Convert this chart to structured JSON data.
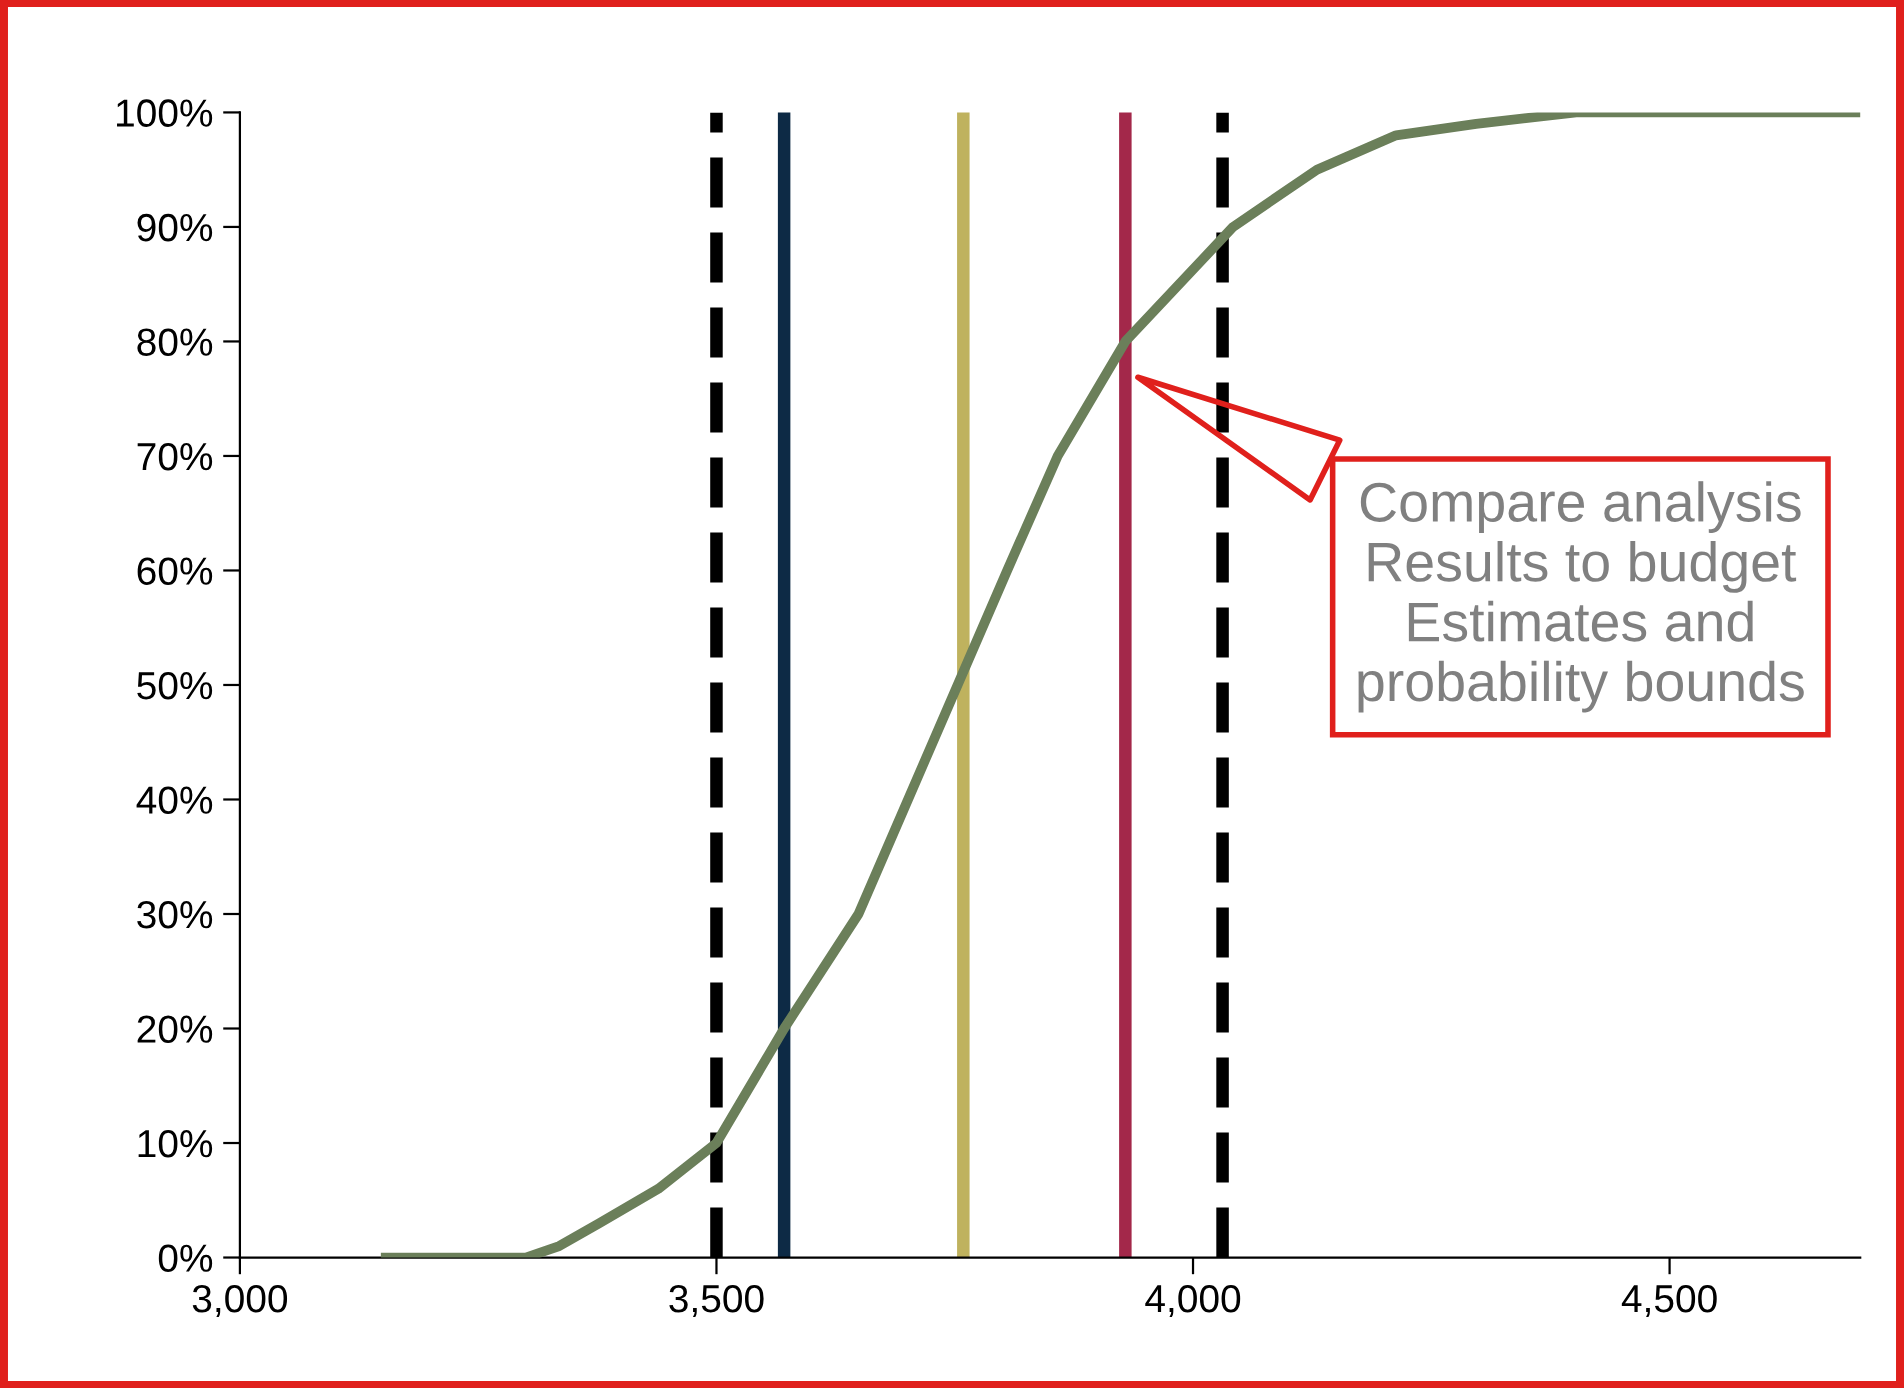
{
  "chart_data": {
    "type": "line",
    "x": [
      3153,
      3300,
      3335,
      3377,
      3439,
      3500,
      3571,
      3649,
      3701,
      3753,
      3805,
      3858,
      3929,
      4042,
      4130,
      4213,
      4297,
      4402,
      4700
    ],
    "values": [
      0,
      0,
      1,
      3,
      6,
      10,
      20,
      30,
      40,
      50,
      60,
      70,
      80,
      90,
      95,
      98,
      99,
      100,
      100
    ],
    "color": "#6b7f5a",
    "marker": "none",
    "line_style": "solid",
    "grid": false,
    "legend": false,
    "xlim": [
      3000,
      4700
    ],
    "xticks": [
      {
        "value": 3000,
        "label": "3,000"
      },
      {
        "value": 3500,
        "label": "3,500"
      },
      {
        "value": 4000,
        "label": "4,000"
      },
      {
        "value": 4500,
        "label": "4,500"
      }
    ],
    "ylim": [
      0,
      100
    ],
    "yticks": [
      {
        "value": 0,
        "label": "0%"
      },
      {
        "value": 10,
        "label": "10%"
      },
      {
        "value": 20,
        "label": "20%"
      },
      {
        "value": 30,
        "label": "30%"
      },
      {
        "value": 40,
        "label": "40%"
      },
      {
        "value": 50,
        "label": "50%"
      },
      {
        "value": 60,
        "label": "60%"
      },
      {
        "value": 70,
        "label": "70%"
      },
      {
        "value": 80,
        "label": "80%"
      },
      {
        "value": 90,
        "label": "90%"
      },
      {
        "value": 100,
        "label": "100%"
      }
    ],
    "ref_lines": [
      {
        "axis": "x",
        "value": 3500,
        "color": "#000000",
        "line_style": "dashed"
      },
      {
        "axis": "x",
        "value": 3571,
        "color": "#0d2a45",
        "line_style": "solid"
      },
      {
        "axis": "x",
        "value": 3759,
        "color": "#bfb25e",
        "line_style": "solid"
      },
      {
        "axis": "x",
        "value": 3929,
        "color": "#a3284a",
        "line_style": "solid"
      },
      {
        "axis": "x",
        "value": 4031,
        "color": "#000000",
        "line_style": "dashed"
      }
    ],
    "annotations": [
      "Compare analysis Results to budget Estimates and probability bounds"
    ]
  }
}
